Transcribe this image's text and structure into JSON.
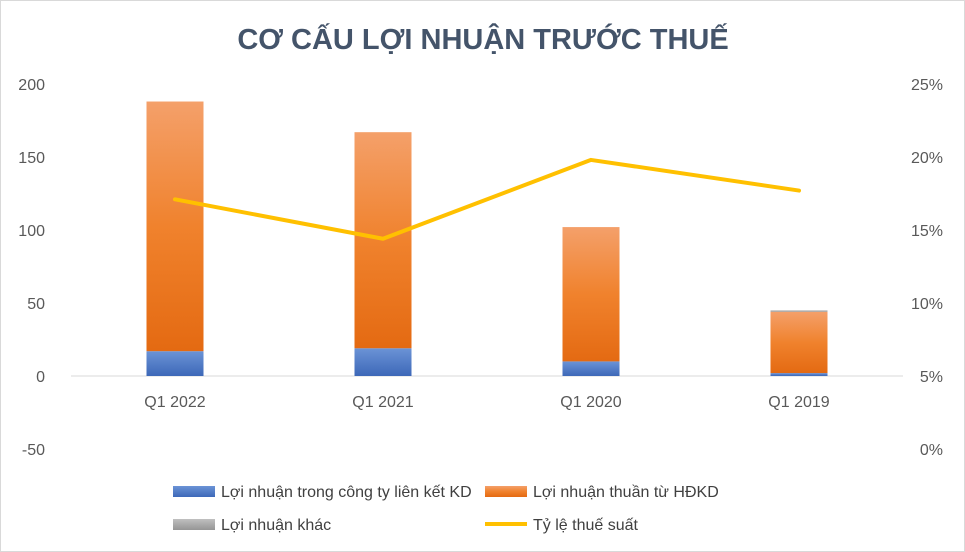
{
  "chart_data": {
    "type": "bar",
    "stacked": true,
    "title": "CƠ CẤU LỢI NHUẬN TRƯỚC THUẾ",
    "categories": [
      "Q1 2022",
      "Q1 2021",
      "Q1 2020",
      "Q1 2019"
    ],
    "y_left": {
      "ylim": [
        -50,
        200
      ],
      "ticks": [
        200,
        150,
        100,
        50,
        0,
        -50
      ]
    },
    "y_right": {
      "ylim": [
        0,
        25
      ],
      "ticks": [
        "25%",
        "20%",
        "15%",
        "10%",
        "5%",
        "0%"
      ]
    },
    "series": [
      {
        "name": "Lợi nhuận trong công ty liên kết KD",
        "kind": "bar",
        "color": "#4472c4",
        "values": [
          17,
          19,
          10,
          2
        ]
      },
      {
        "name": "Lợi nhuận thuần từ HĐKD",
        "kind": "bar",
        "color": "#ed7d31",
        "values": [
          171,
          148,
          92,
          42
        ]
      },
      {
        "name": "Lợi nhuận khác",
        "kind": "bar",
        "color": "#a5a5a5",
        "values": [
          0,
          0,
          0,
          1
        ]
      },
      {
        "name": "Tỷ lệ thuế suất",
        "kind": "line",
        "axis": "right",
        "color": "#ffc000",
        "values": [
          17.1,
          14.4,
          19.8,
          17.7
        ]
      }
    ],
    "grid": false,
    "legend": "bottom"
  }
}
